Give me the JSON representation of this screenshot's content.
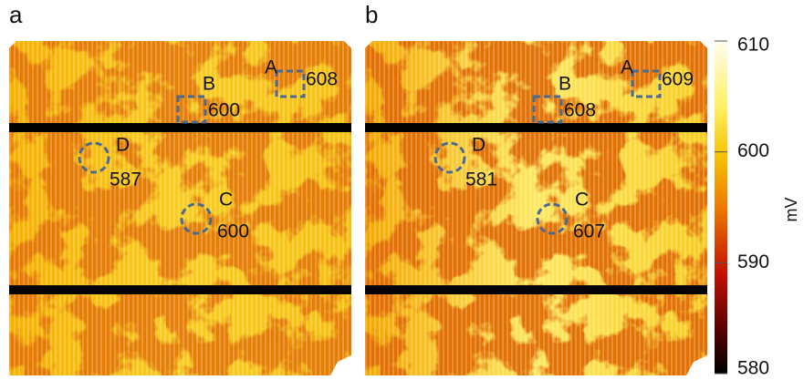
{
  "panels": [
    {
      "label": "a",
      "regions": [
        {
          "name": "A",
          "value": 608
        },
        {
          "name": "B",
          "value": 600
        },
        {
          "name": "D",
          "value": 587
        },
        {
          "name": "C",
          "value": 600
        }
      ]
    },
    {
      "label": "b",
      "regions": [
        {
          "name": "A",
          "value": 609
        },
        {
          "name": "B",
          "value": 608
        },
        {
          "name": "D",
          "value": 581
        },
        {
          "name": "C",
          "value": 607
        }
      ]
    }
  ],
  "colorbar": {
    "label": "mV",
    "range": [
      580,
      610
    ],
    "ticks": [
      610,
      600,
      590,
      580
    ]
  }
}
